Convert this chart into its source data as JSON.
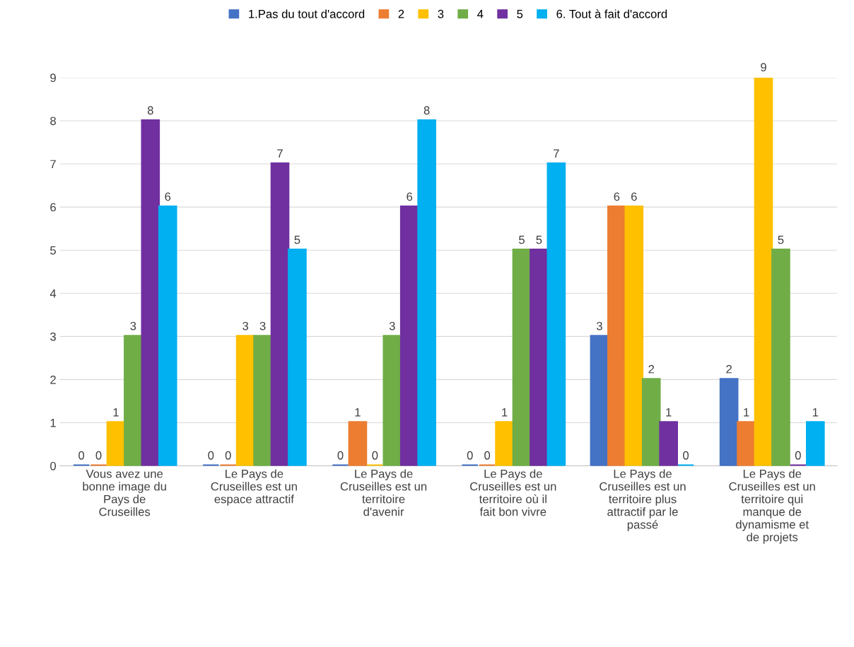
{
  "chart_data": {
    "type": "bar",
    "categories": [
      "Vous avez une\nbonne image du\nPays de\nCruseilles",
      "Le Pays de\nCruseilles est un\nespace attractif",
      "Le Pays de\nCruseilles est un\nterritoire\nd'avenir",
      "Le Pays de\nCruseilles est un\nterritoire où il\nfait bon vivre",
      "Le Pays de\nCruseilles est un\nterritoire plus\nattractif par le\npassé",
      "Le Pays de\nCruseilles est un\nterritoire qui\nmanque de\ndynamisme et\nde projets"
    ],
    "series": [
      {
        "name": "1.Pas du tout d'accord",
        "color": "#4472c4",
        "values": [
          0,
          0,
          0,
          0,
          3,
          2
        ]
      },
      {
        "name": "2",
        "color": "#ed7d31",
        "values": [
          0,
          0,
          1,
          0,
          6,
          1
        ]
      },
      {
        "name": "3",
        "color": "#ffc000",
        "values": [
          1,
          3,
          0,
          1,
          6,
          9
        ]
      },
      {
        "name": "4",
        "color": "#70ad47",
        "values": [
          3,
          3,
          3,
          5,
          2,
          5
        ]
      },
      {
        "name": "5",
        "color": "#7030a0",
        "values": [
          8,
          7,
          6,
          5,
          1,
          0
        ]
      },
      {
        "name": "6. Tout à fait d'accord",
        "color": "#00b0f0",
        "values": [
          6,
          5,
          8,
          7,
          0,
          1
        ]
      }
    ],
    "ylim": [
      0,
      9
    ],
    "yticks": [
      0,
      1,
      2,
      3,
      4,
      5,
      6,
      7,
      8,
      9
    ],
    "grid": "y",
    "legend": "top",
    "data_labels": true
  }
}
